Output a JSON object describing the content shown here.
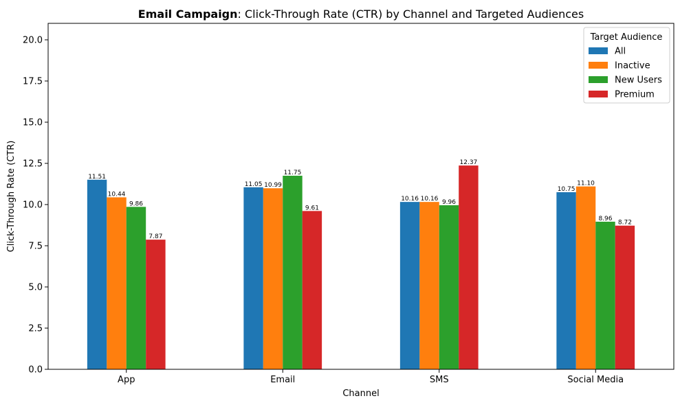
{
  "chart_data": {
    "type": "bar",
    "title_bold": "Email Campaign",
    "title_rest": ": Click-Through Rate (CTR) by Channel and Targeted Audiences",
    "xlabel": "Channel",
    "ylabel": "Click-Through Rate (CTR)",
    "categories": [
      "App",
      "Email",
      "SMS",
      "Social Media"
    ],
    "ylim": [
      0,
      21
    ],
    "yticks": [
      "0.0",
      "2.5",
      "5.0",
      "7.5",
      "10.0",
      "12.5",
      "15.0",
      "17.5",
      "20.0"
    ],
    "grid": false,
    "legend": {
      "title": "Target Audience",
      "placement": "top-right"
    },
    "series": [
      {
        "name": "All",
        "color": "#1f77b4",
        "values": [
          11.51,
          11.05,
          10.16,
          10.75
        ],
        "labels": [
          "11.51",
          "11.05",
          "10.16",
          "10.75"
        ]
      },
      {
        "name": "Inactive",
        "color": "#ff7f0e",
        "values": [
          10.44,
          10.99,
          10.16,
          11.1
        ],
        "labels": [
          "10.44",
          "10.99",
          "10.16",
          "11.10"
        ]
      },
      {
        "name": "New Users",
        "color": "#2ca02c",
        "values": [
          9.86,
          11.75,
          9.96,
          8.96
        ],
        "labels": [
          "9.86",
          "11.75",
          "9.96",
          "8.96"
        ]
      },
      {
        "name": "Premium",
        "color": "#d62728",
        "values": [
          7.87,
          9.61,
          12.37,
          8.72
        ],
        "labels": [
          "7.87",
          "9.61",
          "12.37",
          "8.72"
        ]
      }
    ]
  }
}
